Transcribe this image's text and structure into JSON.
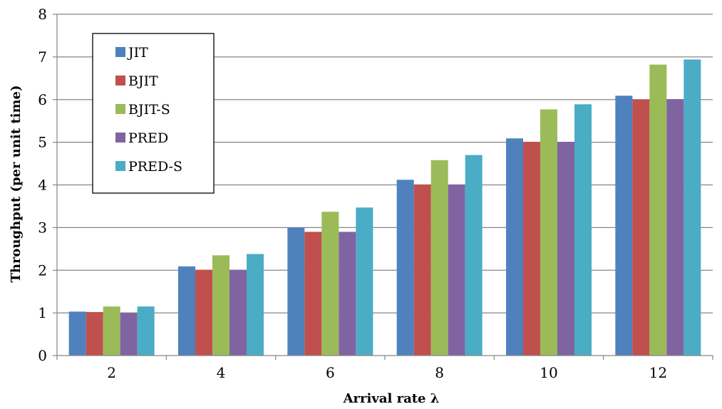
{
  "chart_data": {
    "type": "bar",
    "title": "",
    "xlabel": "Arrival rate λ",
    "ylabel": "Throughput (per unit time)",
    "categories": [
      "2",
      "4",
      "6",
      "8",
      "10",
      "12"
    ],
    "ylim": [
      0,
      8
    ],
    "yticks": [
      "0",
      "1",
      "2",
      "3",
      "4",
      "5",
      "6",
      "7",
      "8"
    ],
    "grid": true,
    "legend_position": "top-left",
    "series": [
      {
        "name": "JIT",
        "color": "#4F81BD",
        "values": [
          1.03,
          2.09,
          3.0,
          4.12,
          5.09,
          6.09
        ]
      },
      {
        "name": "BJIT",
        "color": "#C0504D",
        "values": [
          1.02,
          2.01,
          2.9,
          4.01,
          5.01,
          6.0
        ]
      },
      {
        "name": "BJIT-S",
        "color": "#9BBB59",
        "values": [
          1.15,
          2.35,
          3.37,
          4.58,
          5.77,
          6.82
        ]
      },
      {
        "name": "PRED",
        "color": "#8064A2",
        "values": [
          1.0,
          2.01,
          2.9,
          4.01,
          5.01,
          6.01
        ]
      },
      {
        "name": "PRED-S",
        "color": "#4BACC6",
        "values": [
          1.15,
          2.38,
          3.47,
          4.7,
          5.89,
          6.94
        ]
      }
    ]
  }
}
